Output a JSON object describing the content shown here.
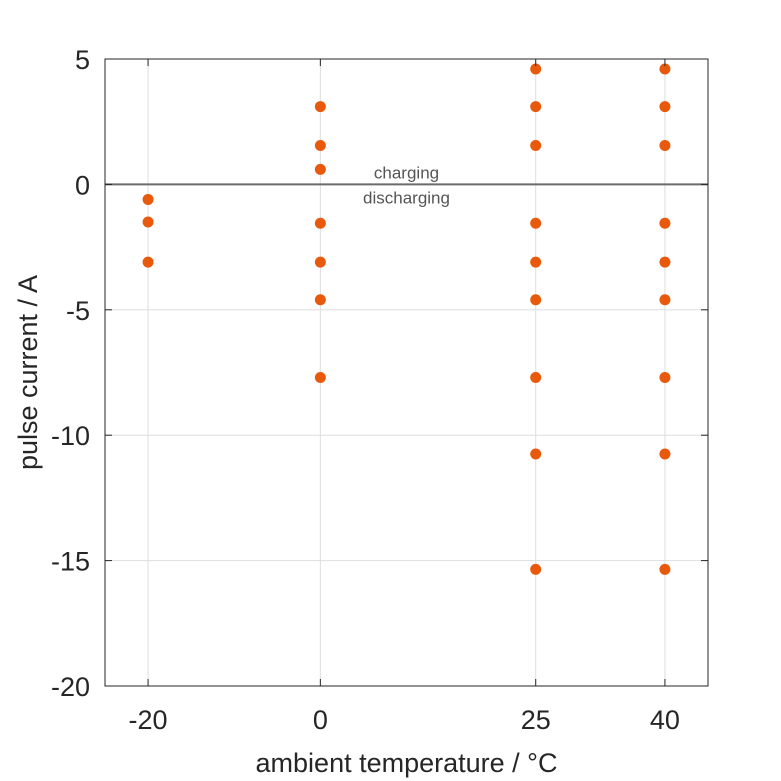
{
  "chart_data": {
    "type": "scatter",
    "title": "",
    "xlabel": "ambient temperature / °C",
    "ylabel": "pulse current / A",
    "x_ticks": [
      -20,
      0,
      25,
      40
    ],
    "x_tick_labels": [
      "-20",
      "0",
      "25",
      "40"
    ],
    "xlim": [
      -25,
      45
    ],
    "y_ticks": [
      5,
      0,
      -5,
      -10,
      -15,
      -20
    ],
    "y_tick_labels": [
      "5",
      "0",
      "-5",
      "-10",
      "-15",
      "-20"
    ],
    "ylim": [
      -20,
      5
    ],
    "grid": true,
    "marker_color": "#e8590c",
    "reference_line": {
      "y": 0,
      "color": "#6b6b6b"
    },
    "annotations": [
      {
        "text": "charging",
        "x": 10,
        "y": 0.5
      },
      {
        "text": "discharging",
        "x": 10,
        "y": -0.5
      }
    ],
    "points": [
      {
        "x": -20,
        "y": -0.6
      },
      {
        "x": -20,
        "y": -1.5
      },
      {
        "x": -20,
        "y": -3.1
      },
      {
        "x": 0,
        "y": 3.1
      },
      {
        "x": 0,
        "y": 1.55
      },
      {
        "x": 0,
        "y": 0.6
      },
      {
        "x": 0,
        "y": -1.55
      },
      {
        "x": 0,
        "y": -3.1
      },
      {
        "x": 0,
        "y": -4.6
      },
      {
        "x": 0,
        "y": -7.7
      },
      {
        "x": 25,
        "y": 4.6
      },
      {
        "x": 25,
        "y": 3.1
      },
      {
        "x": 25,
        "y": 1.55
      },
      {
        "x": 25,
        "y": -1.55
      },
      {
        "x": 25,
        "y": -3.1
      },
      {
        "x": 25,
        "y": -4.6
      },
      {
        "x": 25,
        "y": -7.7
      },
      {
        "x": 25,
        "y": -10.75
      },
      {
        "x": 25,
        "y": -15.35
      },
      {
        "x": 40,
        "y": 4.6
      },
      {
        "x": 40,
        "y": 3.1
      },
      {
        "x": 40,
        "y": 1.55
      },
      {
        "x": 40,
        "y": -1.55
      },
      {
        "x": 40,
        "y": -3.1
      },
      {
        "x": 40,
        "y": -4.6
      },
      {
        "x": 40,
        "y": -7.7
      },
      {
        "x": 40,
        "y": -10.75
      },
      {
        "x": 40,
        "y": -15.35
      }
    ]
  }
}
